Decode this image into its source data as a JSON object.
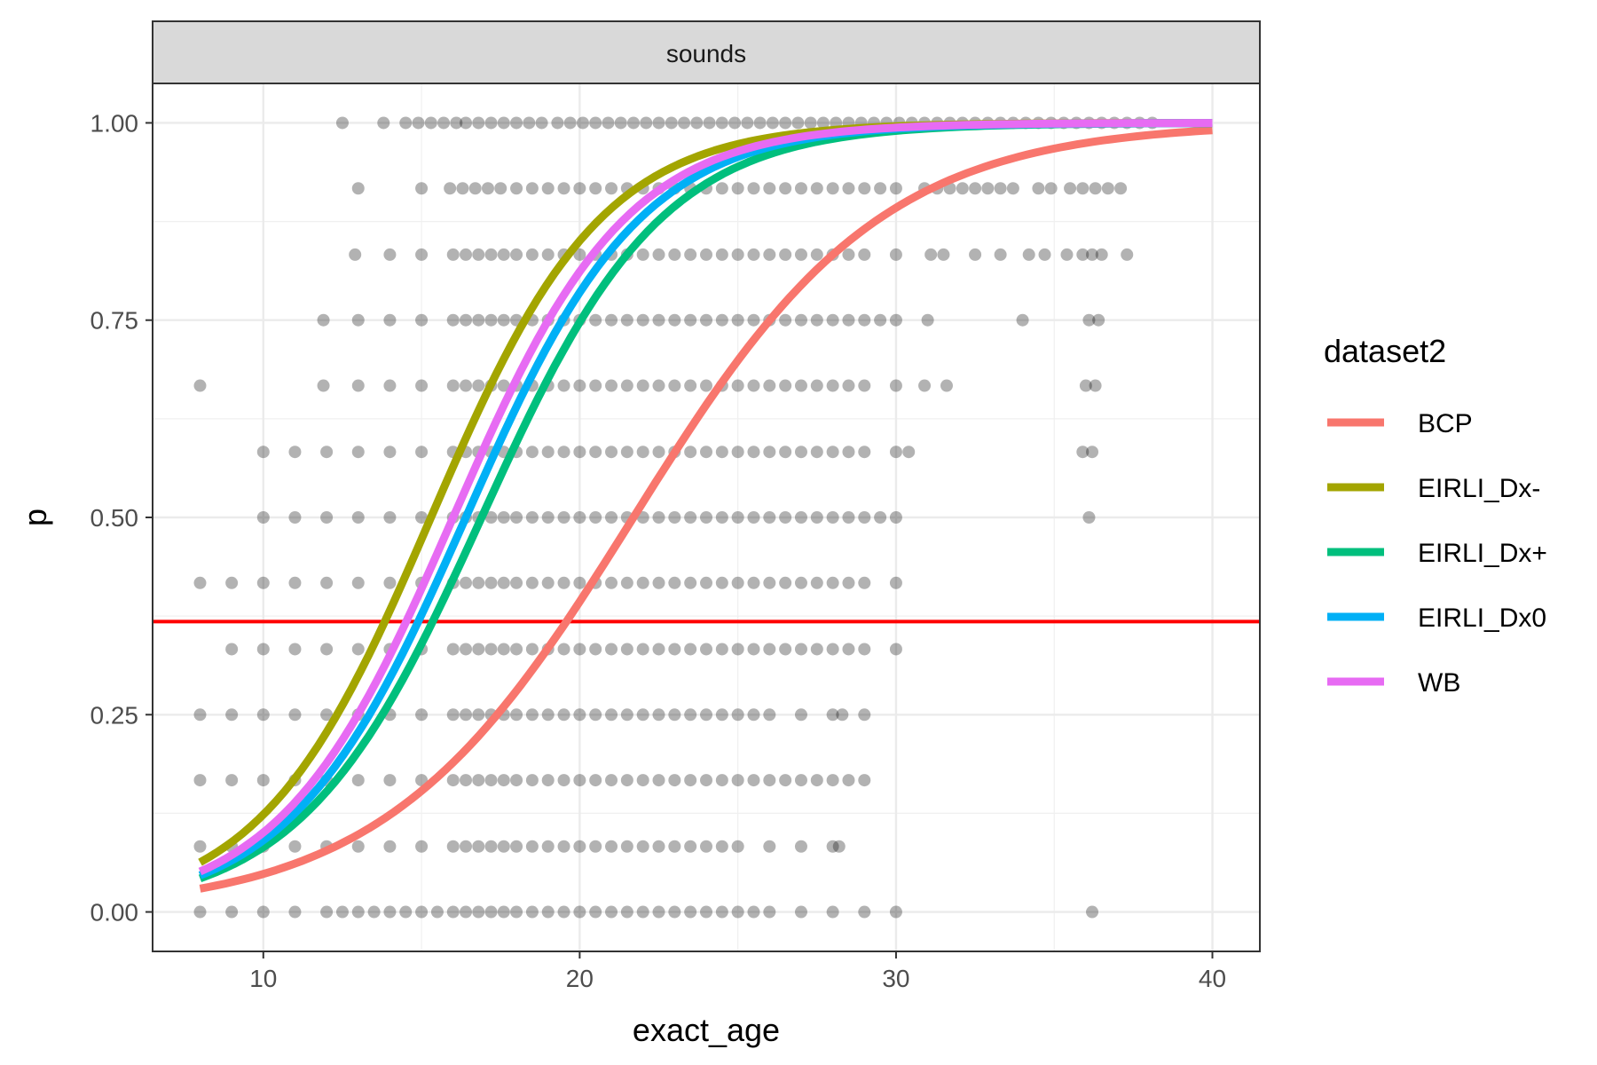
{
  "chart_data": {
    "type": "scatter",
    "facet_label": "sounds",
    "xlabel": "exact_age",
    "ylabel": "p",
    "xlim": [
      6.5,
      41.5
    ],
    "ylim": [
      -0.05,
      1.05
    ],
    "x_ticks": [
      10,
      20,
      30,
      40
    ],
    "y_ticks": [
      0,
      0.25,
      0.5,
      0.75,
      1.0
    ],
    "x_tick_labels": [
      "10",
      "20",
      "30",
      "40"
    ],
    "y_tick_labels": [
      "0.00",
      "0.25",
      "0.50",
      "0.75",
      "1.00"
    ],
    "grid": true,
    "legend_title": "dataset2",
    "legend_position": "right",
    "reference_line": {
      "y": 0.368,
      "color": "#ff0000"
    },
    "series": [
      {
        "name": "BCP",
        "color": "#F8766D",
        "midpoint": 21.7,
        "slope": 0.255,
        "x_start": 8,
        "x_end": 40
      },
      {
        "name": "EIRLI_Dx-",
        "color": "#A3A500",
        "midpoint": 15.3,
        "slope": 0.37,
        "x_start": 8,
        "x_end": 40
      },
      {
        "name": "EIRLI_Dx+",
        "color": "#00BF7D",
        "midpoint": 16.9,
        "slope": 0.35,
        "x_start": 8,
        "x_end": 40
      },
      {
        "name": "EIRLI_Dx0",
        "color": "#00B0F6",
        "midpoint": 16.4,
        "slope": 0.36,
        "x_start": 8,
        "x_end": 40
      },
      {
        "name": "WB",
        "color": "#E76BF3",
        "midpoint": 16.0,
        "slope": 0.365,
        "x_start": 8,
        "x_end": 40
      }
    ],
    "points": {
      "color": "#000000",
      "opacity": 0.3,
      "rows": [
        {
          "y": 1.0,
          "x": [
            12.5,
            13.8,
            14.5,
            14.9,
            15.3,
            15.7,
            16.1,
            16.4,
            16.8,
            17.2,
            17.6,
            18.0,
            18.4,
            18.8,
            19.3,
            19.7,
            20.1,
            20.5,
            20.9,
            21.3,
            21.7,
            22.1,
            22.5,
            22.9,
            23.3,
            23.7,
            24.1,
            24.5,
            24.9,
            25.3,
            25.7,
            26.1,
            26.5,
            26.9,
            27.3,
            27.7,
            28.1,
            28.5,
            28.9,
            29.3,
            29.7,
            30.1,
            30.5,
            30.9,
            31.3,
            31.7,
            32.1,
            32.5,
            32.9,
            33.3,
            33.7,
            34.1,
            34.5,
            34.9,
            35.3,
            35.7,
            36.1,
            36.5,
            36.9,
            37.3,
            37.7,
            38.1
          ]
        },
        {
          "y": 0.917,
          "x": [
            13.0,
            15.0,
            15.9,
            16.3,
            16.7,
            17.1,
            17.5,
            18.0,
            18.5,
            19.0,
            19.5,
            20.0,
            20.5,
            21.0,
            21.5,
            22.0,
            22.5,
            23.0,
            23.5,
            24.0,
            24.5,
            25.0,
            25.5,
            26.0,
            26.5,
            27.0,
            27.5,
            28.0,
            28.5,
            29.0,
            29.5,
            30.0,
            30.9,
            31.3,
            31.7,
            32.1,
            32.5,
            32.9,
            33.3,
            33.7,
            34.5,
            34.9,
            35.5,
            35.9,
            36.3,
            36.7,
            37.1
          ]
        },
        {
          "y": 0.833,
          "x": [
            12.9,
            14.0,
            15.0,
            16.0,
            16.4,
            16.8,
            17.2,
            17.6,
            18.0,
            18.5,
            19.0,
            19.5,
            20.0,
            20.5,
            21.0,
            21.5,
            22.0,
            22.5,
            23.0,
            23.5,
            24.0,
            24.5,
            25.0,
            25.5,
            26.0,
            26.5,
            27.0,
            27.5,
            28.0,
            28.5,
            29.0,
            30.0,
            31.1,
            31.5,
            32.5,
            33.3,
            34.2,
            34.7,
            35.4,
            35.9,
            36.2,
            36.5,
            37.3
          ]
        },
        {
          "y": 0.75,
          "x": [
            11.9,
            13.0,
            14.0,
            15.0,
            16.0,
            16.4,
            16.8,
            17.2,
            17.6,
            18.0,
            18.5,
            19.0,
            19.5,
            20.0,
            20.5,
            21.0,
            21.5,
            22.0,
            22.5,
            23.0,
            23.5,
            24.0,
            24.5,
            25.0,
            25.5,
            26.0,
            26.5,
            27.0,
            27.5,
            28.0,
            28.5,
            29.0,
            29.5,
            30.0,
            31.0,
            34.0,
            36.1,
            36.4
          ]
        },
        {
          "y": 0.667,
          "x": [
            8.0,
            11.9,
            13.0,
            14.0,
            15.0,
            16.0,
            16.4,
            16.8,
            17.2,
            17.6,
            18.0,
            18.5,
            19.0,
            19.5,
            20.0,
            20.5,
            21.0,
            21.5,
            22.0,
            22.5,
            23.0,
            23.5,
            24.0,
            24.5,
            25.0,
            25.5,
            26.0,
            26.5,
            27.0,
            27.5,
            28.0,
            28.5,
            29.0,
            30.0,
            30.9,
            31.6,
            36.0,
            36.3
          ]
        },
        {
          "y": 0.583,
          "x": [
            10.0,
            11.0,
            12.0,
            13.0,
            14.0,
            15.0,
            16.0,
            16.4,
            16.8,
            17.2,
            17.6,
            18.0,
            18.5,
            19.0,
            19.5,
            20.0,
            20.5,
            21.0,
            21.5,
            22.0,
            22.5,
            23.0,
            23.5,
            24.0,
            24.5,
            25.0,
            25.5,
            26.0,
            26.5,
            27.0,
            27.5,
            28.0,
            28.5,
            29.0,
            30.0,
            30.4,
            35.9,
            36.2
          ]
        },
        {
          "y": 0.5,
          "x": [
            10.0,
            11.0,
            12.0,
            13.0,
            14.0,
            15.0,
            16.0,
            16.4,
            16.8,
            17.2,
            17.6,
            18.0,
            18.5,
            19.0,
            19.5,
            20.0,
            20.5,
            21.0,
            21.5,
            22.0,
            22.5,
            23.0,
            23.5,
            24.0,
            24.5,
            25.0,
            25.5,
            26.0,
            26.5,
            27.0,
            27.5,
            28.0,
            28.5,
            29.0,
            29.5,
            30.0,
            36.1
          ]
        },
        {
          "y": 0.417,
          "x": [
            8.0,
            9.0,
            10.0,
            11.0,
            12.0,
            13.0,
            14.0,
            15.0,
            16.0,
            16.4,
            16.8,
            17.2,
            17.6,
            18.0,
            18.5,
            19.0,
            19.5,
            20.0,
            20.5,
            21.0,
            21.5,
            22.0,
            22.5,
            23.0,
            23.5,
            24.0,
            24.5,
            25.0,
            25.5,
            26.0,
            26.5,
            27.0,
            27.5,
            28.0,
            28.5,
            29.0,
            30.0
          ]
        },
        {
          "y": 0.333,
          "x": [
            9.0,
            10.0,
            11.0,
            12.0,
            13.0,
            14.0,
            15.0,
            16.0,
            16.4,
            16.8,
            17.2,
            17.6,
            18.0,
            18.5,
            19.0,
            19.5,
            20.0,
            20.5,
            21.0,
            21.5,
            22.0,
            22.5,
            23.0,
            23.5,
            24.0,
            24.5,
            25.0,
            25.5,
            26.0,
            26.5,
            27.0,
            27.5,
            28.0,
            28.5,
            29.0,
            30.0
          ]
        },
        {
          "y": 0.25,
          "x": [
            8.0,
            9.0,
            10.0,
            11.0,
            12.0,
            13.0,
            14.0,
            15.0,
            16.0,
            16.4,
            16.8,
            17.2,
            17.6,
            18.0,
            18.5,
            19.0,
            19.5,
            20.0,
            20.5,
            21.0,
            21.5,
            22.0,
            22.5,
            23.0,
            23.5,
            24.0,
            24.5,
            25.0,
            25.5,
            26.0,
            27.0,
            28.0,
            28.3,
            29.0
          ]
        },
        {
          "y": 0.167,
          "x": [
            8.0,
            9.0,
            10.0,
            11.0,
            12.0,
            13.0,
            14.0,
            15.0,
            16.0,
            16.4,
            16.8,
            17.2,
            17.6,
            18.0,
            18.5,
            19.0,
            19.5,
            20.0,
            20.5,
            21.0,
            21.5,
            22.0,
            22.5,
            23.0,
            23.5,
            24.0,
            24.5,
            25.0,
            25.5,
            26.0,
            26.5,
            27.0,
            27.5,
            28.0,
            28.5,
            29.0
          ]
        },
        {
          "y": 0.083,
          "x": [
            8.0,
            9.0,
            10.0,
            11.0,
            12.0,
            13.0,
            14.0,
            15.0,
            16.0,
            16.4,
            16.8,
            17.2,
            17.6,
            18.0,
            18.5,
            19.0,
            19.5,
            20.0,
            20.5,
            21.0,
            21.5,
            22.0,
            22.5,
            23.0,
            23.5,
            24.0,
            24.5,
            25.0,
            26.0,
            27.0,
            28.0,
            28.2
          ]
        },
        {
          "y": 0.0,
          "x": [
            8.0,
            9.0,
            10.0,
            11.0,
            12.0,
            12.5,
            13.0,
            13.5,
            14.0,
            14.5,
            15.0,
            15.5,
            16.0,
            16.4,
            16.8,
            17.2,
            17.6,
            18.0,
            18.5,
            19.0,
            19.5,
            20.0,
            20.5,
            21.0,
            21.5,
            22.0,
            22.5,
            23.0,
            23.5,
            24.0,
            24.5,
            25.0,
            25.5,
            26.0,
            27.0,
            28.0,
            29.0,
            30.0,
            36.2
          ]
        }
      ]
    }
  }
}
